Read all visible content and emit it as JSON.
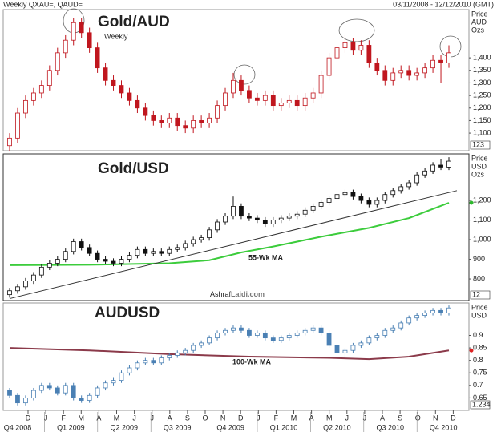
{
  "header": {
    "left": "Weekly QXAU=, QAUD=",
    "right": "03/11/2008 - 12/12/2010 (GMT)"
  },
  "x_axis": {
    "months": [
      "D",
      "J",
      "F",
      "M",
      "A",
      "M",
      "J",
      "J",
      "A",
      "S",
      "O",
      "N",
      "D",
      "J",
      "F",
      "M",
      "A",
      "M",
      "J",
      "J",
      "A",
      "S",
      "O",
      "N",
      "D"
    ],
    "quarters": [
      "Q4 2008",
      "Q1 2009",
      "Q2 2009",
      "Q3 2009",
      "Q4 2009",
      "Q1 2010",
      "Q2 2010",
      "Q3 2010",
      "Q4 2010"
    ]
  },
  "chart_data": [
    {
      "type": "candlestick",
      "title": "Gold/AUD",
      "subtitle": "Weekly",
      "axis_label": [
        "Price",
        "AUD",
        "Ozs"
      ],
      "price_tag": "123",
      "color": "#c0161e",
      "ylim": [
        1030,
        1592
      ],
      "yticks": [
        {
          "value": 1100,
          "label": "1,100"
        },
        {
          "value": 1150,
          "label": "1,150"
        },
        {
          "value": 1200,
          "label": "1,200"
        },
        {
          "value": 1250,
          "label": "1,250"
        },
        {
          "value": 1300,
          "label": "1,300"
        },
        {
          "value": 1350,
          "label": "1,350"
        },
        {
          "value": 1400,
          "label": "1,400"
        }
      ],
      "ohlc": [
        [
          1050,
          1100,
          1030,
          1080
        ],
        [
          1080,
          1200,
          1060,
          1180
        ],
        [
          1180,
          1250,
          1160,
          1230
        ],
        [
          1230,
          1280,
          1210,
          1260
        ],
        [
          1260,
          1310,
          1240,
          1290
        ],
        [
          1290,
          1370,
          1270,
          1350
        ],
        [
          1350,
          1440,
          1330,
          1420
        ],
        [
          1420,
          1490,
          1400,
          1470
        ],
        [
          1470,
          1560,
          1450,
          1540
        ],
        [
          1540,
          1560,
          1480,
          1500
        ],
        [
          1500,
          1520,
          1420,
          1440
        ],
        [
          1440,
          1460,
          1340,
          1360
        ],
        [
          1360,
          1380,
          1290,
          1310
        ],
        [
          1310,
          1330,
          1270,
          1290
        ],
        [
          1290,
          1310,
          1240,
          1260
        ],
        [
          1260,
          1280,
          1210,
          1230
        ],
        [
          1230,
          1250,
          1180,
          1200
        ],
        [
          1200,
          1220,
          1150,
          1170
        ],
        [
          1170,
          1190,
          1130,
          1150
        ],
        [
          1150,
          1170,
          1120,
          1140
        ],
        [
          1140,
          1180,
          1120,
          1160
        ],
        [
          1160,
          1180,
          1110,
          1130
        ],
        [
          1130,
          1150,
          1100,
          1120
        ],
        [
          1120,
          1170,
          1100,
          1150
        ],
        [
          1150,
          1170,
          1120,
          1140
        ],
        [
          1140,
          1180,
          1120,
          1160
        ],
        [
          1160,
          1230,
          1140,
          1210
        ],
        [
          1210,
          1280,
          1190,
          1260
        ],
        [
          1260,
          1340,
          1240,
          1310
        ],
        [
          1310,
          1330,
          1250,
          1270
        ],
        [
          1270,
          1290,
          1220,
          1240
        ],
        [
          1240,
          1260,
          1210,
          1230
        ],
        [
          1230,
          1270,
          1210,
          1250
        ],
        [
          1250,
          1270,
          1190,
          1210
        ],
        [
          1210,
          1240,
          1190,
          1220
        ],
        [
          1220,
          1250,
          1200,
          1230
        ],
        [
          1230,
          1250,
          1190,
          1210
        ],
        [
          1210,
          1260,
          1190,
          1240
        ],
        [
          1240,
          1280,
          1220,
          1260
        ],
        [
          1260,
          1350,
          1240,
          1330
        ],
        [
          1330,
          1420,
          1310,
          1400
        ],
        [
          1400,
          1460,
          1380,
          1440
        ],
        [
          1440,
          1490,
          1420,
          1460
        ],
        [
          1460,
          1480,
          1410,
          1430
        ],
        [
          1430,
          1470,
          1410,
          1450
        ],
        [
          1450,
          1470,
          1360,
          1380
        ],
        [
          1380,
          1400,
          1330,
          1350
        ],
        [
          1350,
          1370,
          1290,
          1310
        ],
        [
          1310,
          1360,
          1290,
          1340
        ],
        [
          1340,
          1370,
          1320,
          1350
        ],
        [
          1350,
          1370,
          1310,
          1330
        ],
        [
          1330,
          1360,
          1310,
          1340
        ],
        [
          1340,
          1380,
          1320,
          1360
        ],
        [
          1360,
          1410,
          1340,
          1390
        ],
        [
          1390,
          1410,
          1300,
          1380
        ],
        [
          1380,
          1450,
          1360,
          1420
        ]
      ]
    },
    {
      "type": "candlestick",
      "title": "Gold/USD",
      "axis_label": [
        "Price",
        "USD",
        "Ozs"
      ],
      "price_tag": "12",
      "color": "#111111",
      "ylim": [
        690,
        1437
      ],
      "yticks": [
        800,
        900,
        {
          "value": 1000,
          "label": "1,000"
        },
        {
          "value": 1100,
          "label": "1,100"
        },
        {
          "value": 1200,
          "label": "1,200"
        }
      ],
      "annotation": {
        "a": "Ashraf",
        "b": "Laidi.com"
      },
      "ohlc": [
        [
          720,
          755,
          705,
          740
        ],
        [
          740,
          775,
          725,
          760
        ],
        [
          760,
          805,
          745,
          790
        ],
        [
          790,
          835,
          775,
          820
        ],
        [
          820,
          875,
          805,
          860
        ],
        [
          860,
          895,
          845,
          880
        ],
        [
          880,
          915,
          865,
          900
        ],
        [
          900,
          955,
          885,
          940
        ],
        [
          940,
          1005,
          925,
          990
        ],
        [
          990,
          1005,
          945,
          960
        ],
        [
          960,
          975,
          915,
          930
        ],
        [
          930,
          945,
          885,
          900
        ],
        [
          900,
          915,
          875,
          890
        ],
        [
          890,
          905,
          865,
          880
        ],
        [
          880,
          915,
          865,
          900
        ],
        [
          900,
          935,
          885,
          920
        ],
        [
          920,
          965,
          905,
          950
        ],
        [
          950,
          965,
          915,
          930
        ],
        [
          930,
          955,
          915,
          940
        ],
        [
          940,
          955,
          915,
          930
        ],
        [
          930,
          965,
          915,
          950
        ],
        [
          950,
          975,
          935,
          960
        ],
        [
          960,
          995,
          945,
          980
        ],
        [
          980,
          1015,
          965,
          1000
        ],
        [
          1000,
          1025,
          985,
          1010
        ],
        [
          1010,
          1065,
          995,
          1050
        ],
        [
          1050,
          1105,
          1035,
          1090
        ],
        [
          1090,
          1135,
          1075,
          1120
        ],
        [
          1120,
          1220,
          1105,
          1170
        ],
        [
          1170,
          1185,
          1105,
          1120
        ],
        [
          1120,
          1135,
          1095,
          1110
        ],
        [
          1110,
          1125,
          1085,
          1100
        ],
        [
          1100,
          1115,
          1065,
          1080
        ],
        [
          1080,
          1115,
          1065,
          1100
        ],
        [
          1100,
          1125,
          1085,
          1110
        ],
        [
          1110,
          1135,
          1095,
          1120
        ],
        [
          1120,
          1145,
          1105,
          1130
        ],
        [
          1130,
          1165,
          1115,
          1150
        ],
        [
          1150,
          1185,
          1135,
          1170
        ],
        [
          1170,
          1205,
          1155,
          1190
        ],
        [
          1190,
          1225,
          1175,
          1210
        ],
        [
          1210,
          1245,
          1195,
          1230
        ],
        [
          1230,
          1255,
          1215,
          1240
        ],
        [
          1240,
          1255,
          1205,
          1220
        ],
        [
          1220,
          1235,
          1185,
          1200
        ],
        [
          1200,
          1215,
          1165,
          1180
        ],
        [
          1180,
          1215,
          1165,
          1200
        ],
        [
          1200,
          1245,
          1185,
          1230
        ],
        [
          1230,
          1265,
          1215,
          1250
        ],
        [
          1250,
          1285,
          1235,
          1270
        ],
        [
          1270,
          1305,
          1255,
          1290
        ],
        [
          1290,
          1345,
          1275,
          1330
        ],
        [
          1330,
          1365,
          1315,
          1350
        ],
        [
          1350,
          1395,
          1335,
          1380
        ],
        [
          1380,
          1410,
          1355,
          1370
        ],
        [
          1370,
          1420,
          1355,
          1400
        ]
      ],
      "lines": [
        {
          "name": "55-Wk MA",
          "color": "#3ccc3c",
          "x": [
            0,
            10,
            20,
            25,
            29,
            33,
            39,
            45,
            50,
            55
          ],
          "values": [
            870,
            872,
            880,
            895,
            935,
            965,
            1015,
            1060,
            1110,
            1188
          ]
        },
        {
          "color": "#333333",
          "x": [
            0,
            56
          ],
          "values": [
            700,
            1250
          ]
        }
      ]
    },
    {
      "type": "candlestick",
      "title": "AUDUSD",
      "axis_label": [
        "Price",
        "USD"
      ],
      "price_tag": "1.234",
      "color": "#4a80b4",
      "ylim": [
        0.6,
        1.03
      ],
      "yticks": [
        0.65,
        0.7,
        0.75,
        0.8,
        0.85,
        0.9
      ],
      "ohlc": [
        [
          0.68,
          0.69,
          0.65,
          0.66
        ],
        [
          0.66,
          0.67,
          0.62,
          0.63
        ],
        [
          0.63,
          0.66,
          0.62,
          0.65
        ],
        [
          0.65,
          0.69,
          0.64,
          0.68
        ],
        [
          0.68,
          0.71,
          0.67,
          0.7
        ],
        [
          0.7,
          0.71,
          0.68,
          0.69
        ],
        [
          0.69,
          0.7,
          0.66,
          0.67
        ],
        [
          0.67,
          0.71,
          0.66,
          0.7
        ],
        [
          0.7,
          0.71,
          0.64,
          0.65
        ],
        [
          0.65,
          0.66,
          0.63,
          0.64
        ],
        [
          0.64,
          0.67,
          0.63,
          0.66
        ],
        [
          0.66,
          0.7,
          0.65,
          0.69
        ],
        [
          0.69,
          0.72,
          0.68,
          0.71
        ],
        [
          0.71,
          0.73,
          0.7,
          0.72
        ],
        [
          0.72,
          0.76,
          0.71,
          0.75
        ],
        [
          0.75,
          0.78,
          0.74,
          0.77
        ],
        [
          0.77,
          0.8,
          0.76,
          0.79
        ],
        [
          0.79,
          0.81,
          0.78,
          0.8
        ],
        [
          0.8,
          0.81,
          0.78,
          0.79
        ],
        [
          0.79,
          0.82,
          0.78,
          0.81
        ],
        [
          0.81,
          0.83,
          0.8,
          0.82
        ],
        [
          0.82,
          0.84,
          0.81,
          0.83
        ],
        [
          0.83,
          0.85,
          0.82,
          0.84
        ],
        [
          0.84,
          0.87,
          0.83,
          0.86
        ],
        [
          0.86,
          0.88,
          0.85,
          0.87
        ],
        [
          0.87,
          0.9,
          0.86,
          0.89
        ],
        [
          0.89,
          0.92,
          0.88,
          0.91
        ],
        [
          0.91,
          0.93,
          0.9,
          0.92
        ],
        [
          0.92,
          0.94,
          0.91,
          0.93
        ],
        [
          0.93,
          0.94,
          0.91,
          0.92
        ],
        [
          0.92,
          0.93,
          0.89,
          0.9
        ],
        [
          0.9,
          0.92,
          0.89,
          0.91
        ],
        [
          0.91,
          0.92,
          0.88,
          0.89
        ],
        [
          0.89,
          0.9,
          0.87,
          0.88
        ],
        [
          0.88,
          0.9,
          0.87,
          0.89
        ],
        [
          0.89,
          0.91,
          0.88,
          0.9
        ],
        [
          0.9,
          0.92,
          0.89,
          0.91
        ],
        [
          0.91,
          0.93,
          0.9,
          0.92
        ],
        [
          0.92,
          0.94,
          0.91,
          0.93
        ],
        [
          0.93,
          0.94,
          0.9,
          0.91
        ],
        [
          0.91,
          0.92,
          0.85,
          0.86
        ],
        [
          0.86,
          0.87,
          0.81,
          0.83
        ],
        [
          0.83,
          0.85,
          0.81,
          0.84
        ],
        [
          0.84,
          0.87,
          0.83,
          0.86
        ],
        [
          0.86,
          0.88,
          0.85,
          0.87
        ],
        [
          0.87,
          0.9,
          0.86,
          0.89
        ],
        [
          0.89,
          0.91,
          0.88,
          0.9
        ],
        [
          0.9,
          0.93,
          0.89,
          0.92
        ],
        [
          0.92,
          0.94,
          0.91,
          0.93
        ],
        [
          0.93,
          0.96,
          0.92,
          0.95
        ],
        [
          0.95,
          0.98,
          0.94,
          0.97
        ],
        [
          0.97,
          0.99,
          0.96,
          0.98
        ],
        [
          0.98,
          1.0,
          0.97,
          0.99
        ],
        [
          0.99,
          1.01,
          0.98,
          1.0
        ],
        [
          1.0,
          1.01,
          0.98,
          0.99
        ],
        [
          0.99,
          1.02,
          0.98,
          1.01
        ]
      ],
      "lines": [
        {
          "name": "100-Wk MA",
          "color": "#8b3a4a",
          "x": [
            0,
            10,
            20,
            30,
            40,
            45,
            50,
            55
          ],
          "values": [
            0.85,
            0.84,
            0.825,
            0.815,
            0.81,
            0.805,
            0.815,
            0.84
          ]
        }
      ]
    }
  ]
}
